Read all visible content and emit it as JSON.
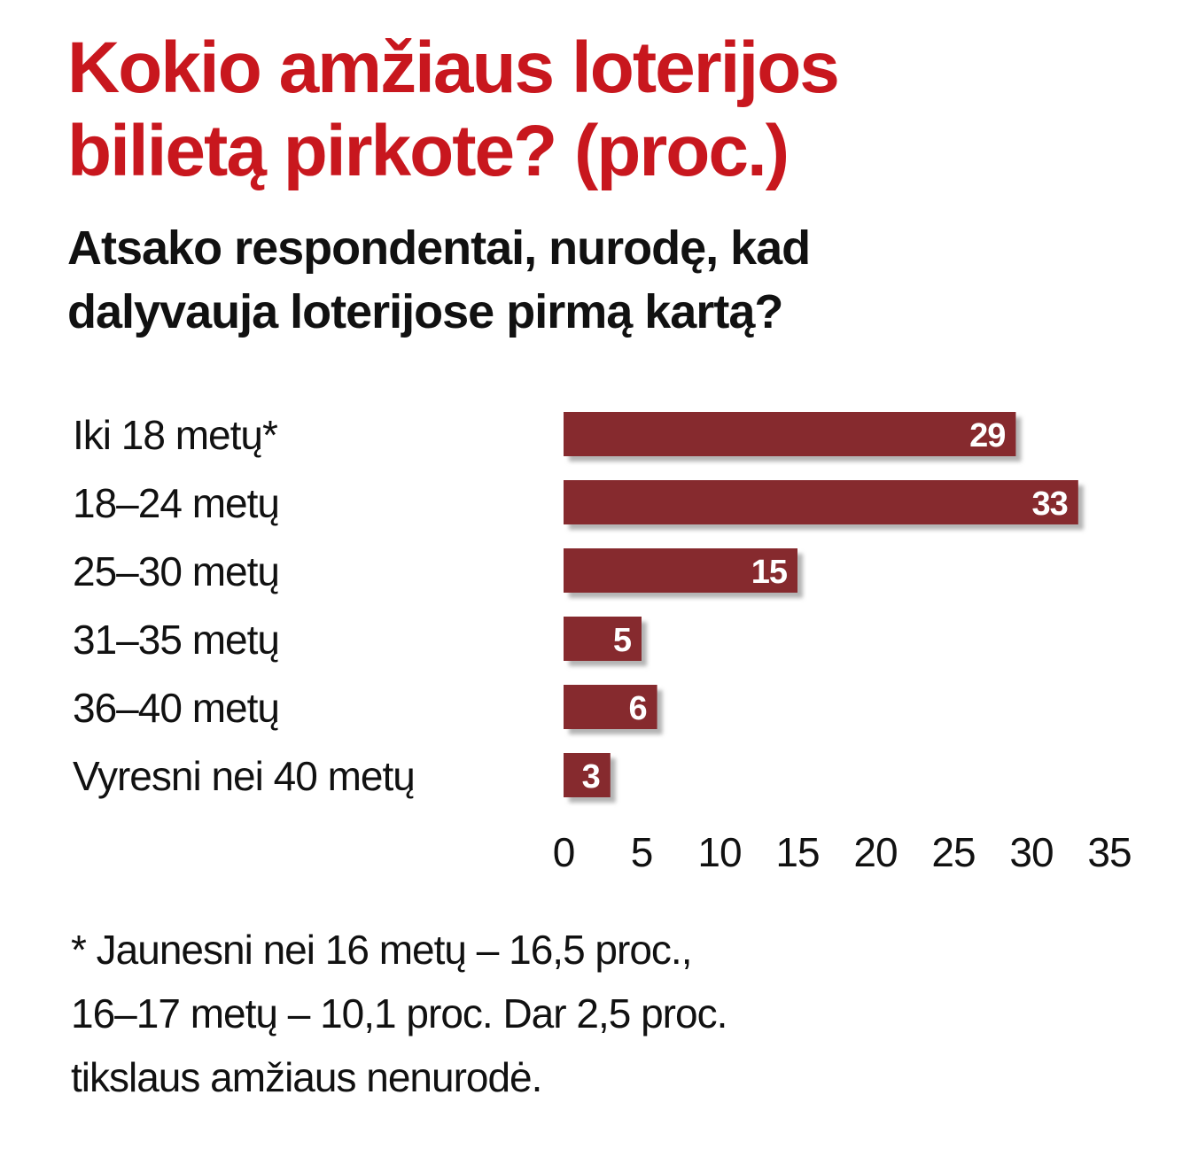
{
  "title": {
    "line1": "Kokio amžiaus loterijos",
    "line2": "bilietą pirkote? (proc.)"
  },
  "subtitle": {
    "line1": "Atsako respondentai, nurodę, kad",
    "line2": "dalyvauja loterijose pirmą kartą?"
  },
  "colors": {
    "title": "#c8171e",
    "bar": "#862a2e",
    "bar_shadow": "#b4b4b4",
    "text": "#111111",
    "bar_label": "#ffffff"
  },
  "chart_data": {
    "type": "bar",
    "orientation": "horizontal",
    "categories": [
      "Iki 18 metų*",
      "18–24 metų",
      "25–30 metų",
      "31–35 metų",
      "36–40 metų",
      "Vyresni nei 40 metų"
    ],
    "values": [
      29,
      33,
      15,
      5,
      6,
      3
    ],
    "data_labels": [
      "29",
      "33",
      "15",
      "5",
      "6",
      "3"
    ],
    "xlim": [
      0,
      35
    ],
    "xticks": [
      0,
      5,
      10,
      15,
      20,
      25,
      30,
      35
    ],
    "xtick_labels": [
      "0",
      "5",
      "10",
      "15",
      "20",
      "25",
      "30",
      "35"
    ],
    "grid": false,
    "legend": "none"
  },
  "footnote": {
    "line1": "* Jaunesni nei 16 metų – 16,5 proc.,",
    "line2": "16–17 metų – 10,1 proc. Dar 2,5 proc.",
    "line3": "tikslaus amžiaus nenurodė."
  }
}
